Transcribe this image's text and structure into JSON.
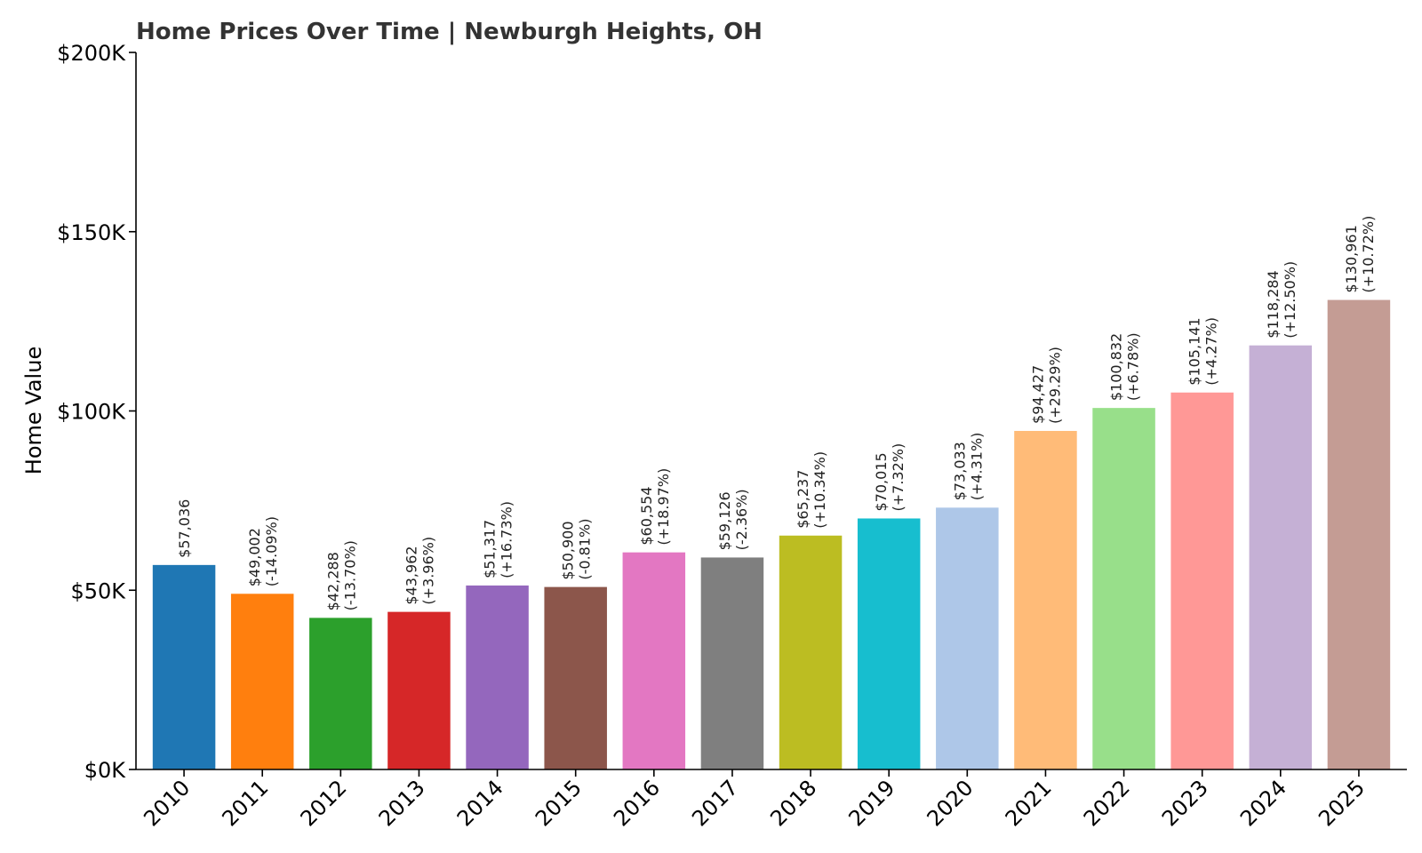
{
  "chart_data": {
    "type": "bar",
    "title": "Home Prices Over Time | Newburgh Heights, OH",
    "xlabel": "",
    "ylabel": "Home Value",
    "ylim": [
      0,
      200000
    ],
    "y_ticks": [
      {
        "value": 0,
        "label": "$0K"
      },
      {
        "value": 50000,
        "label": "$50K"
      },
      {
        "value": 100000,
        "label": "$100K"
      },
      {
        "value": 150000,
        "label": "$150K"
      },
      {
        "value": 200000,
        "label": "$200K"
      }
    ],
    "grid": false,
    "legend": "none",
    "categories": [
      "2010",
      "2011",
      "2012",
      "2013",
      "2014",
      "2015",
      "2016",
      "2017",
      "2018",
      "2019",
      "2020",
      "2021",
      "2022",
      "2023",
      "2024",
      "2025"
    ],
    "values": [
      57036,
      49002,
      42288,
      43962,
      51317,
      50900,
      60554,
      59126,
      65237,
      70015,
      73033,
      94427,
      100832,
      105141,
      118284,
      130961
    ],
    "value_labels": [
      "$57,036",
      "$49,002",
      "$42,288",
      "$43,962",
      "$51,317",
      "$50,900",
      "$60,554",
      "$59,126",
      "$65,237",
      "$70,015",
      "$73,033",
      "$94,427",
      "$100,832",
      "$105,141",
      "$118,284",
      "$130,961"
    ],
    "change_labels": [
      "",
      "(-14.09%)",
      "(-13.70%)",
      "(+3.96%)",
      "(+16.73%)",
      "(-0.81%)",
      "(+18.97%)",
      "(-2.36%)",
      "(+10.34%)",
      "(+7.32%)",
      "(+4.31%)",
      "(+29.29%)",
      "(+6.78%)",
      "(+4.27%)",
      "(+12.50%)",
      "(+10.72%)"
    ],
    "colors": [
      "#1f77b4",
      "#ff7f0e",
      "#2ca02c",
      "#d62728",
      "#9467bd",
      "#8c564b",
      "#e377c2",
      "#7f7f7f",
      "#bcbd22",
      "#17becf",
      "#aec7e8",
      "#ffbb78",
      "#98df8a",
      "#ff9896",
      "#c5b0d5",
      "#c49c94"
    ]
  }
}
